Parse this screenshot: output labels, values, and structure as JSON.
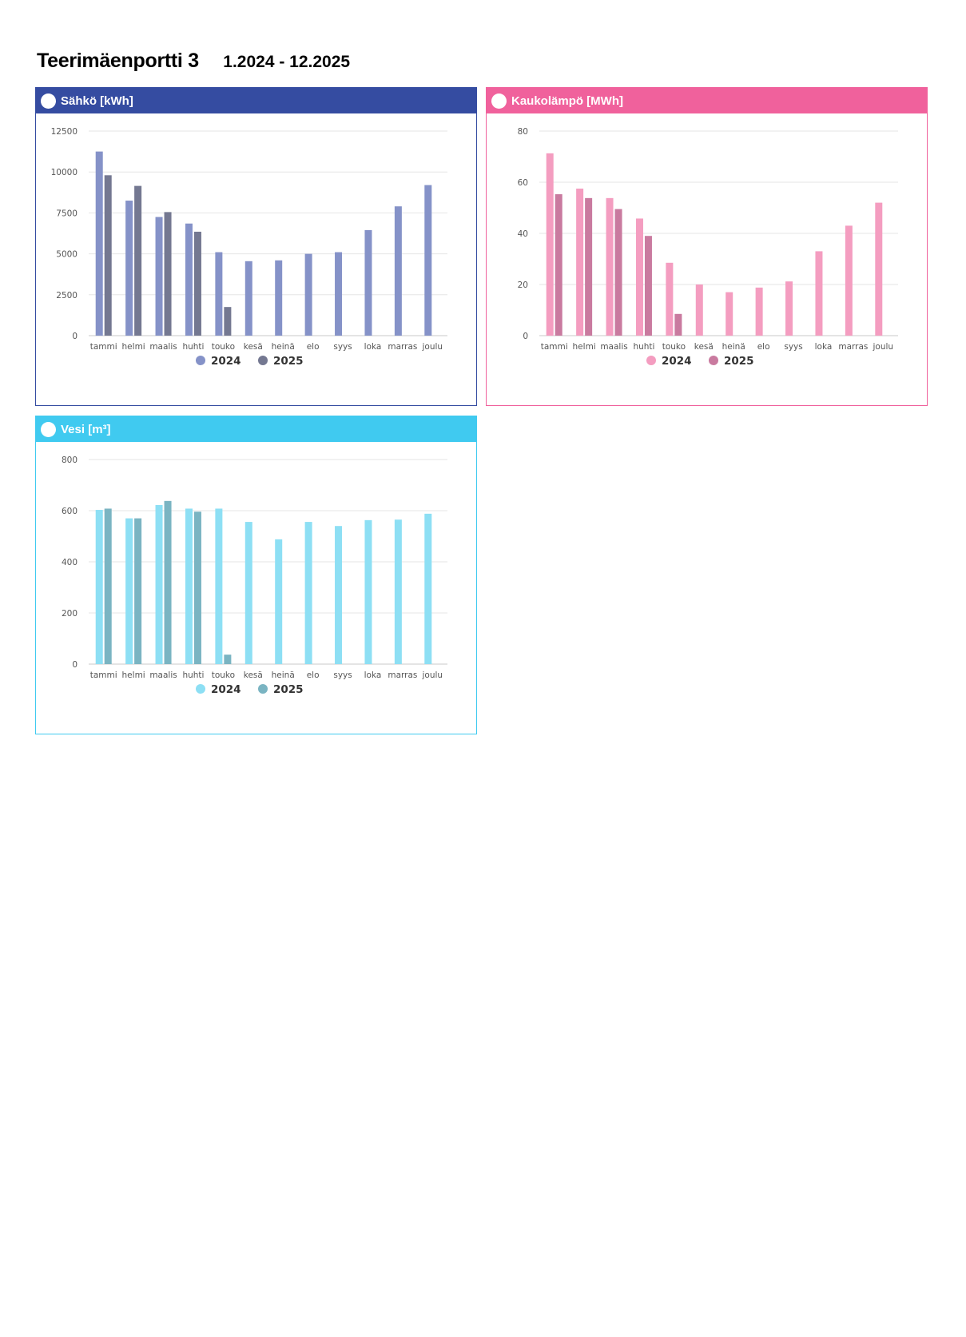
{
  "header": {
    "title": "Teerimäenportti 3",
    "date_range": "1.2024 - 12.2025"
  },
  "chart_data": [
    {
      "type": "bar",
      "title": "Sähkö [kWh]",
      "header_color": "#354ca1",
      "categories": [
        "tammi",
        "helmi",
        "maalis",
        "huhti",
        "touko",
        "kesä",
        "heinä",
        "elo",
        "syys",
        "loka",
        "marras",
        "joulu"
      ],
      "yticks": [
        "0",
        "2500",
        "5000",
        "7500",
        "10000",
        "12500"
      ],
      "ylim": [
        0,
        12500
      ],
      "grid": true,
      "legend_position": "bottom",
      "series": [
        {
          "name": "2024",
          "color": "#8592c8",
          "values": [
            11250,
            8250,
            7250,
            6850,
            5100,
            4550,
            4600,
            5000,
            5100,
            6450,
            7900,
            9200
          ]
        },
        {
          "name": "2025",
          "color": "#747891",
          "values": [
            9800,
            9150,
            7550,
            6350,
            1750,
            null,
            null,
            null,
            null,
            null,
            null,
            null
          ]
        }
      ]
    },
    {
      "type": "bar",
      "title": "Kaukolämpö [MWh]",
      "header_color": "#f0619c",
      "categories": [
        "tammi",
        "helmi",
        "maalis",
        "huhti",
        "touko",
        "kesä",
        "heinä",
        "elo",
        "syys",
        "loka",
        "marras",
        "joulu"
      ],
      "yticks": [
        "0",
        "20",
        "40",
        "60",
        "80"
      ],
      "ylim": [
        0,
        80
      ],
      "grid": true,
      "legend_position": "bottom",
      "series": [
        {
          "name": "2024",
          "color": "#f49dc0",
          "values": [
            71.3,
            57.5,
            53.8,
            45.8,
            28.5,
            20,
            17,
            18.8,
            21.2,
            33,
            43,
            52
          ]
        },
        {
          "name": "2025",
          "color": "#c97a9f",
          "values": [
            55.3,
            53.8,
            49.5,
            39,
            8.5,
            null,
            null,
            null,
            null,
            null,
            null,
            null
          ]
        }
      ]
    },
    {
      "type": "bar",
      "title": "Vesi [m³]",
      "header_color": "#40caf0",
      "categories": [
        "tammi",
        "helmi",
        "maalis",
        "huhti",
        "touko",
        "kesä",
        "heinä",
        "elo",
        "syys",
        "loka",
        "marras",
        "joulu"
      ],
      "yticks": [
        "0",
        "200",
        "400",
        "600",
        "800"
      ],
      "ylim": [
        0,
        800
      ],
      "grid": true,
      "legend_position": "bottom",
      "series": [
        {
          "name": "2024",
          "color": "#8ddff4",
          "values": [
            603,
            570,
            622,
            608,
            608,
            556,
            488,
            556,
            540,
            563,
            565,
            588
          ]
        },
        {
          "name": "2025",
          "color": "#7ab4c2",
          "values": [
            608,
            570,
            638,
            596,
            37,
            null,
            null,
            null,
            null,
            null,
            null,
            null
          ]
        }
      ]
    }
  ]
}
